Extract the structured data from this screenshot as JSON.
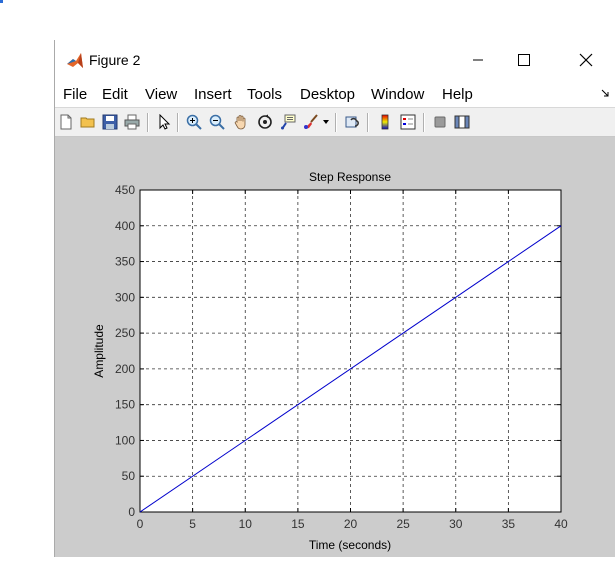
{
  "window": {
    "title": "Figure 2"
  },
  "menu": [
    "File",
    "Edit",
    "View",
    "Insert",
    "Tools",
    "Desktop",
    "Window",
    "Help"
  ],
  "toolbar_icons": [
    "new-figure-icon",
    "open-file-icon",
    "save-icon",
    "print-icon",
    "select-arrow-icon",
    "zoom-in-icon",
    "zoom-out-icon",
    "pan-hand-icon",
    "rotate-3d-icon",
    "data-cursor-icon",
    "brush-icon",
    "brush-dropdown-icon",
    "link-plot-icon",
    "colorbar-icon",
    "legend-icon",
    "hide-plot-tools-icon",
    "show-plot-tools-icon"
  ],
  "chart_data": {
    "type": "line",
    "title": "Step Response",
    "xlabel": "Time (seconds)",
    "ylabel": "Amplitude",
    "xlim": [
      0,
      40
    ],
    "ylim": [
      0,
      450
    ],
    "xticks": [
      0,
      5,
      10,
      15,
      20,
      25,
      30,
      35,
      40
    ],
    "yticks": [
      0,
      50,
      100,
      150,
      200,
      250,
      300,
      350,
      400,
      450
    ],
    "grid": true,
    "series": [
      {
        "x": [
          0,
          40
        ],
        "y": [
          0,
          400
        ],
        "color": "#0000cc"
      }
    ]
  }
}
